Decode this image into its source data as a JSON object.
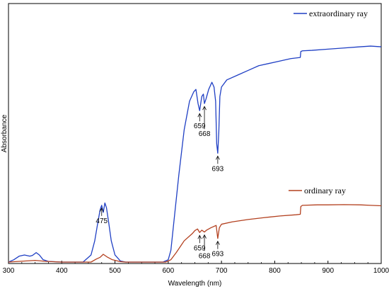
{
  "chart_data": {
    "type": "line",
    "title": "",
    "xlabel": "Wavelength (nm)",
    "ylabel": "Absorbance",
    "xlim": [
      300,
      1000
    ],
    "ylim": [
      0,
      100
    ],
    "xticks": [
      300,
      400,
      500,
      600,
      700,
      800,
      900,
      1000
    ],
    "yticks_shown": false,
    "grid": false,
    "legend_position": "top-right",
    "series": [
      {
        "name": "extraordinary ray",
        "color": "#1f3fc4",
        "points": [
          [
            300,
            0
          ],
          [
            310,
            1
          ],
          [
            320,
            2.5
          ],
          [
            330,
            3
          ],
          [
            340,
            2.5
          ],
          [
            345,
            2.8
          ],
          [
            352,
            4
          ],
          [
            358,
            3
          ],
          [
            365,
            1
          ],
          [
            375,
            0.3
          ],
          [
            400,
            0
          ],
          [
            440,
            0
          ],
          [
            455,
            3
          ],
          [
            462,
            9
          ],
          [
            468,
            17
          ],
          [
            472,
            22
          ],
          [
            475,
            24
          ],
          [
            478,
            21
          ],
          [
            481,
            25
          ],
          [
            484,
            23
          ],
          [
            488,
            17
          ],
          [
            493,
            9
          ],
          [
            500,
            3
          ],
          [
            510,
            0.5
          ],
          [
            520,
            0
          ],
          [
            590,
            0
          ],
          [
            600,
            1
          ],
          [
            605,
            5
          ],
          [
            612,
            20
          ],
          [
            620,
            37
          ],
          [
            630,
            56
          ],
          [
            640,
            68
          ],
          [
            648,
            72
          ],
          [
            652,
            73
          ],
          [
            656,
            67
          ],
          [
            659,
            64
          ],
          [
            663,
            70
          ],
          [
            666,
            71
          ],
          [
            668,
            67
          ],
          [
            671,
            69
          ],
          [
            676,
            73
          ],
          [
            682,
            76
          ],
          [
            686,
            74
          ],
          [
            689,
            68
          ],
          [
            691,
            50
          ],
          [
            693,
            46
          ],
          [
            695,
            55
          ],
          [
            697,
            70
          ],
          [
            700,
            74
          ],
          [
            710,
            77
          ],
          [
            730,
            79
          ],
          [
            750,
            81
          ],
          [
            770,
            83
          ],
          [
            790,
            84
          ],
          [
            810,
            85
          ],
          [
            830,
            86
          ],
          [
            848,
            86.5
          ],
          [
            849,
            89
          ],
          [
            852,
            89.3
          ],
          [
            870,
            89.5
          ],
          [
            900,
            90
          ],
          [
            930,
            90.5
          ],
          [
            960,
            91
          ],
          [
            980,
            91.3
          ],
          [
            1000,
            91
          ]
        ]
      },
      {
        "name": "ordinary ray",
        "color": "#b3401f",
        "points": [
          [
            300,
            0
          ],
          [
            320,
            0.3
          ],
          [
            350,
            0.7
          ],
          [
            370,
            0.3
          ],
          [
            400,
            0
          ],
          [
            455,
            0
          ],
          [
            465,
            1.3
          ],
          [
            472,
            2
          ],
          [
            478,
            3.3
          ],
          [
            485,
            2.2
          ],
          [
            495,
            1
          ],
          [
            510,
            0.2
          ],
          [
            520,
            0
          ],
          [
            595,
            0
          ],
          [
            605,
            1
          ],
          [
            615,
            4
          ],
          [
            630,
            9
          ],
          [
            645,
            12
          ],
          [
            650,
            13.3
          ],
          [
            655,
            14
          ],
          [
            659,
            12.5
          ],
          [
            663,
            13.5
          ],
          [
            668,
            12.7
          ],
          [
            672,
            13.5
          ],
          [
            680,
            14.5
          ],
          [
            690,
            15.5
          ],
          [
            693,
            10
          ],
          [
            696,
            14.5
          ],
          [
            700,
            16
          ],
          [
            720,
            17
          ],
          [
            750,
            18
          ],
          [
            780,
            18.8
          ],
          [
            810,
            19.5
          ],
          [
            840,
            20
          ],
          [
            848,
            20.2
          ],
          [
            849,
            23.5
          ],
          [
            852,
            24
          ],
          [
            880,
            24.2
          ],
          [
            900,
            24.2
          ],
          [
            930,
            24.3
          ],
          [
            960,
            24.2
          ],
          [
            980,
            24
          ],
          [
            1000,
            23.8
          ]
        ]
      }
    ],
    "annotations": [
      {
        "label": "475",
        "x": 475,
        "series": "extraordinary ray"
      },
      {
        "label": "659",
        "x": 659,
        "series": "extraordinary ray"
      },
      {
        "label": "668",
        "x": 668,
        "series": "extraordinary ray"
      },
      {
        "label": "693",
        "x": 693,
        "series": "extraordinary ray"
      },
      {
        "label": "659",
        "x": 659,
        "series": "ordinary ray"
      },
      {
        "label": "668",
        "x": 668,
        "series": "ordinary ray"
      },
      {
        "label": "693",
        "x": 693,
        "series": "ordinary ray"
      }
    ]
  }
}
